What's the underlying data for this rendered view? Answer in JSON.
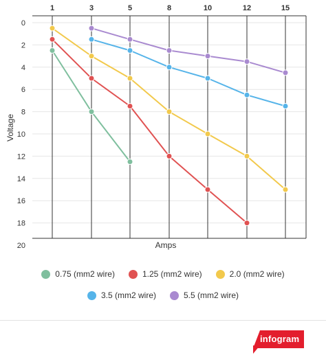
{
  "chart_data": {
    "type": "line",
    "title": "",
    "xlabel": "Amps",
    "ylabel": "Voltage",
    "categories": [
      "1",
      "3",
      "5",
      "8",
      "10",
      "12",
      "15"
    ],
    "y_ticks": [
      "0",
      "2",
      "4",
      "6",
      "8",
      "10",
      "12",
      "14",
      "16",
      "18",
      "20"
    ],
    "ylim": [
      0,
      20
    ],
    "y_inverted": true,
    "grid": true,
    "legend_position": "bottom",
    "series": [
      {
        "name": "0.75 (mm2 wire)",
        "color": "#7fbf9e",
        "values": [
          2.5,
          8,
          12.5,
          null,
          null,
          null,
          null
        ]
      },
      {
        "name": "1.25 (mm2 wire)",
        "color": "#e05252",
        "values": [
          1.5,
          5,
          7.5,
          12,
          15,
          18,
          null
        ]
      },
      {
        "name": "2.0 (mm2 wire)",
        "color": "#f2c94c",
        "values": [
          0.5,
          3,
          5,
          8,
          10,
          12,
          15
        ]
      },
      {
        "name": "3.5 (mm2 wire)",
        "color": "#56b4e9",
        "values": [
          null,
          1.5,
          2.5,
          4,
          5,
          6.5,
          7.5
        ]
      },
      {
        "name": "5.5 (mm2 wire)",
        "color": "#a98ad0",
        "values": [
          null,
          0.5,
          1.5,
          2.5,
          3,
          3.5,
          4.5
        ]
      }
    ]
  },
  "legend_rows": [
    [
      "0.75 (mm2 wire)",
      "1.25 (mm2 wire)",
      "2.0 (mm2 wire)"
    ],
    [
      "3.5 (mm2 wire)",
      "5.5 (mm2 wire)"
    ]
  ],
  "brand": {
    "label": "infogram"
  }
}
